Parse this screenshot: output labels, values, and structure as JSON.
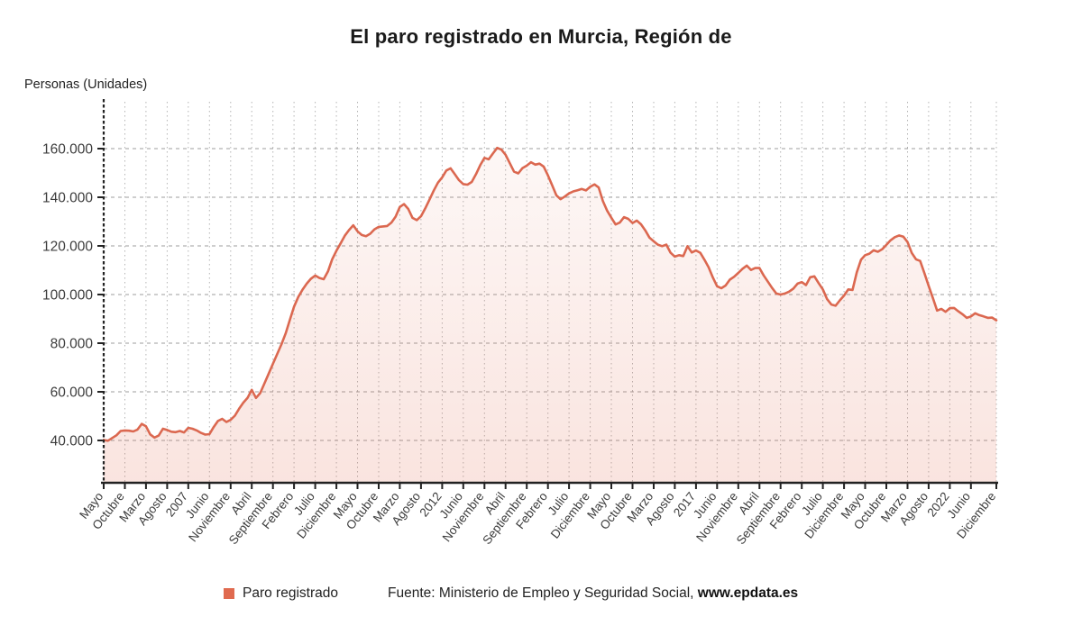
{
  "page": {
    "title": "El paro registrado en Murcia, Región de",
    "y_axis_unit": "Personas (Unidades)"
  },
  "legend": {
    "series_label": "Paro registrado"
  },
  "source": {
    "prefix": "Fuente: Ministerio de Empleo y Seguridad Social, ",
    "site": "www.epdata.es"
  },
  "colors": {
    "accent": "#e06a4f",
    "line": "#db6850",
    "area_top": "rgba(224,106,79,0.05)",
    "area_bottom": "rgba(224,106,79,0.18)",
    "grid_h": "#9e9e9e",
    "grid_v": "#b4b4b4",
    "axis": "#222222",
    "tick_text": "#3c3c3c"
  },
  "chart_data": {
    "type": "area",
    "title": "El paro registrado en Murcia, Región de",
    "ylabel": "Personas (Unidades)",
    "series_name": "Paro registrado",
    "frequency": "monthly",
    "x_start": "Mayo 2005",
    "x_end": "Diciembre 2022",
    "legend_position": "bottom",
    "grid": true,
    "ylim_ticks": [
      40000,
      160000
    ],
    "y_ticks": [
      40000,
      60000,
      80000,
      100000,
      120000,
      140000,
      160000
    ],
    "y_tick_labels": [
      "40.000",
      "60.000",
      "80.000",
      "100.000",
      "120.000",
      "140.000",
      "160.000"
    ],
    "x_tick_months": [
      0,
      5,
      10,
      15,
      20,
      25,
      30,
      35,
      40,
      45,
      50,
      55,
      60,
      65,
      70,
      75,
      80,
      85,
      90,
      95,
      100,
      105,
      110,
      115,
      120,
      125,
      130,
      135,
      140,
      145,
      150,
      155,
      160,
      165,
      170,
      175,
      180,
      185,
      190,
      195,
      200,
      205,
      211
    ],
    "x_tick_labels": [
      "Mayo",
      "Octubre",
      "Marzo",
      "Agosto",
      "2007",
      "Junio",
      "Noviembre",
      "Abril",
      "Septiembre",
      "Febrero",
      "Julio",
      "Diciembre",
      "Mayo",
      "Octubre",
      "Marzo",
      "Agosto",
      "2012",
      "Junio",
      "Noviembre",
      "Abril",
      "Septiembre",
      "Febrero",
      "Julio",
      "Diciembre",
      "Mayo",
      "Octubre",
      "Marzo",
      "Agosto",
      "2017",
      "Junio",
      "Noviembre",
      "Abril",
      "Septiembre",
      "Febrero",
      "Julio",
      "Diciembre",
      "Mayo",
      "Octubre",
      "Marzo",
      "Agosto",
      "2022",
      "Junio",
      "Diciembre"
    ],
    "values": [
      40200,
      39900,
      41000,
      42100,
      43900,
      44100,
      44000,
      43700,
      44500,
      46800,
      45800,
      42500,
      41200,
      42000,
      44800,
      44300,
      43600,
      43400,
      43900,
      43300,
      45200,
      44800,
      44100,
      43100,
      42400,
      42600,
      45500,
      48000,
      48900,
      47600,
      48500,
      50200,
      53000,
      55500,
      57500,
      60800,
      57500,
      59500,
      63500,
      67500,
      71500,
      75500,
      79500,
      84000,
      89500,
      95000,
      99000,
      102000,
      104500,
      106500,
      107800,
      106800,
      106300,
      109500,
      114500,
      118000,
      121000,
      124200,
      126500,
      128500,
      126000,
      124500,
      124000,
      125000,
      126800,
      127800,
      128000,
      128200,
      129600,
      132000,
      136000,
      137200,
      135200,
      131500,
      130600,
      132200,
      135400,
      139000,
      142700,
      146000,
      148200,
      151000,
      151900,
      149500,
      147000,
      145400,
      145200,
      146300,
      149500,
      153200,
      156200,
      155600,
      158000,
      160300,
      159600,
      157500,
      154000,
      150500,
      149800,
      152000,
      153000,
      154400,
      153400,
      153800,
      152600,
      149000,
      145000,
      140800,
      139200,
      140300,
      141600,
      142400,
      142900,
      143400,
      142800,
      144300,
      145300,
      144000,
      138500,
      134500,
      131600,
      128800,
      129600,
      131800,
      131100,
      129400,
      130400,
      128900,
      126400,
      123400,
      121900,
      120500,
      119900,
      120500,
      117200,
      115600,
      116200,
      115800,
      119900,
      117300,
      118100,
      117200,
      114300,
      111200,
      107000,
      103400,
      102600,
      103700,
      106100,
      107300,
      108900,
      110600,
      111900,
      110100,
      110900,
      110900,
      107900,
      105300,
      102700,
      100400,
      100000,
      100400,
      101200,
      102400,
      104500,
      105100,
      103900,
      107100,
      107500,
      104700,
      102100,
      98100,
      95900,
      95400,
      97600,
      99600,
      102100,
      101900,
      109100,
      114300,
      116200,
      116800,
      118200,
      117600,
      118600,
      120400,
      122300,
      123600,
      124300,
      123800,
      121600,
      117100,
      114500,
      113800,
      108800,
      103600,
      98600,
      93400,
      94100,
      92900,
      94400,
      94500,
      93100,
      91900,
      90400,
      91000,
      92300,
      91500,
      91000,
      90400,
      90500,
      89400
    ]
  }
}
